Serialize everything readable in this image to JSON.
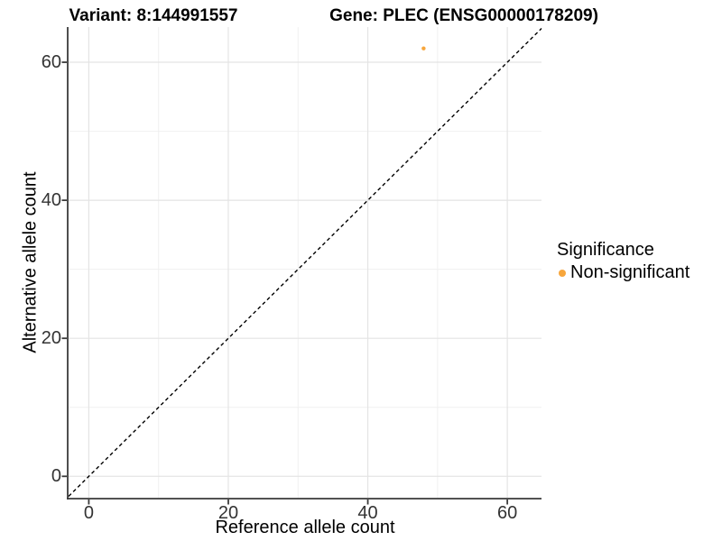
{
  "chart_data": {
    "type": "scatter",
    "title_left": "Variant: 8:144991557",
    "title_right": "Gene: PLEC (ENSG00000178209)",
    "xlabel": "Reference allele count",
    "ylabel": "Alternative allele count",
    "xlim": [
      -2.9,
      64.9
    ],
    "ylim": [
      -3.1,
      65.1
    ],
    "x_ticks": [
      0,
      20,
      40,
      60
    ],
    "y_ticks": [
      0,
      20,
      40,
      60
    ],
    "x_minor_ticks": [
      10,
      30,
      50
    ],
    "y_minor_ticks": [
      10,
      30,
      50
    ],
    "grid": "major and minor gridlines on white background",
    "identity_line": {
      "style": "dashed",
      "color": "#000000",
      "from": -2.9,
      "to": 64.9
    },
    "series": [
      {
        "name": "Non-significant",
        "color": "#F7A63C",
        "point_radius": 2.2,
        "points": [
          {
            "x": 48,
            "y": 62
          }
        ]
      }
    ],
    "legend": {
      "title": "Significance",
      "position": "right",
      "entries": [
        {
          "label": "Non-significant",
          "color": "#F7A63C"
        }
      ]
    }
  },
  "style": {
    "grid_major_color": "#E4E4E4",
    "grid_minor_color": "#F0F0F0",
    "axis_color": "#3A3A3A",
    "tick_text_color": "#333333"
  }
}
